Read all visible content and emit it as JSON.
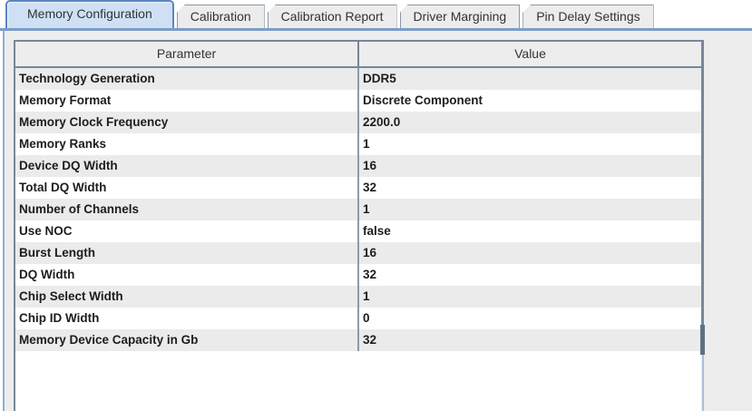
{
  "tabs": [
    {
      "label": "Memory Configuration",
      "active": true
    },
    {
      "label": "Calibration",
      "active": false
    },
    {
      "label": "Calibration Report",
      "active": false
    },
    {
      "label": "Driver Margining",
      "active": false
    },
    {
      "label": "Pin Delay Settings",
      "active": false
    }
  ],
  "table": {
    "columns": [
      "Parameter",
      "Value"
    ],
    "rows": [
      {
        "parameter": "Technology Generation",
        "value": "DDR5"
      },
      {
        "parameter": "Memory Format",
        "value": "Discrete Component"
      },
      {
        "parameter": "Memory Clock Frequency",
        "value": "2200.0"
      },
      {
        "parameter": "Memory Ranks",
        "value": "1"
      },
      {
        "parameter": "Device DQ Width",
        "value": "16"
      },
      {
        "parameter": "Total DQ Width",
        "value": "32"
      },
      {
        "parameter": "Number of Channels",
        "value": "1"
      },
      {
        "parameter": "Use NOC",
        "value": "false"
      },
      {
        "parameter": "Burst Length",
        "value": "16"
      },
      {
        "parameter": "DQ Width",
        "value": "32"
      },
      {
        "parameter": "Chip Select Width",
        "value": "1"
      },
      {
        "parameter": "Chip ID Width",
        "value": "0"
      },
      {
        "parameter": "Memory Device Capacity in Gb",
        "value": "32"
      }
    ]
  },
  "colors": {
    "accent_blue": "#5b84c4",
    "selected_tab_fill": "#cfe0f5",
    "tab_underline": "#7b9cc9",
    "panel_gray": "#ededed",
    "row_stripe": "#ebebeb",
    "table_border": "#76879a"
  }
}
